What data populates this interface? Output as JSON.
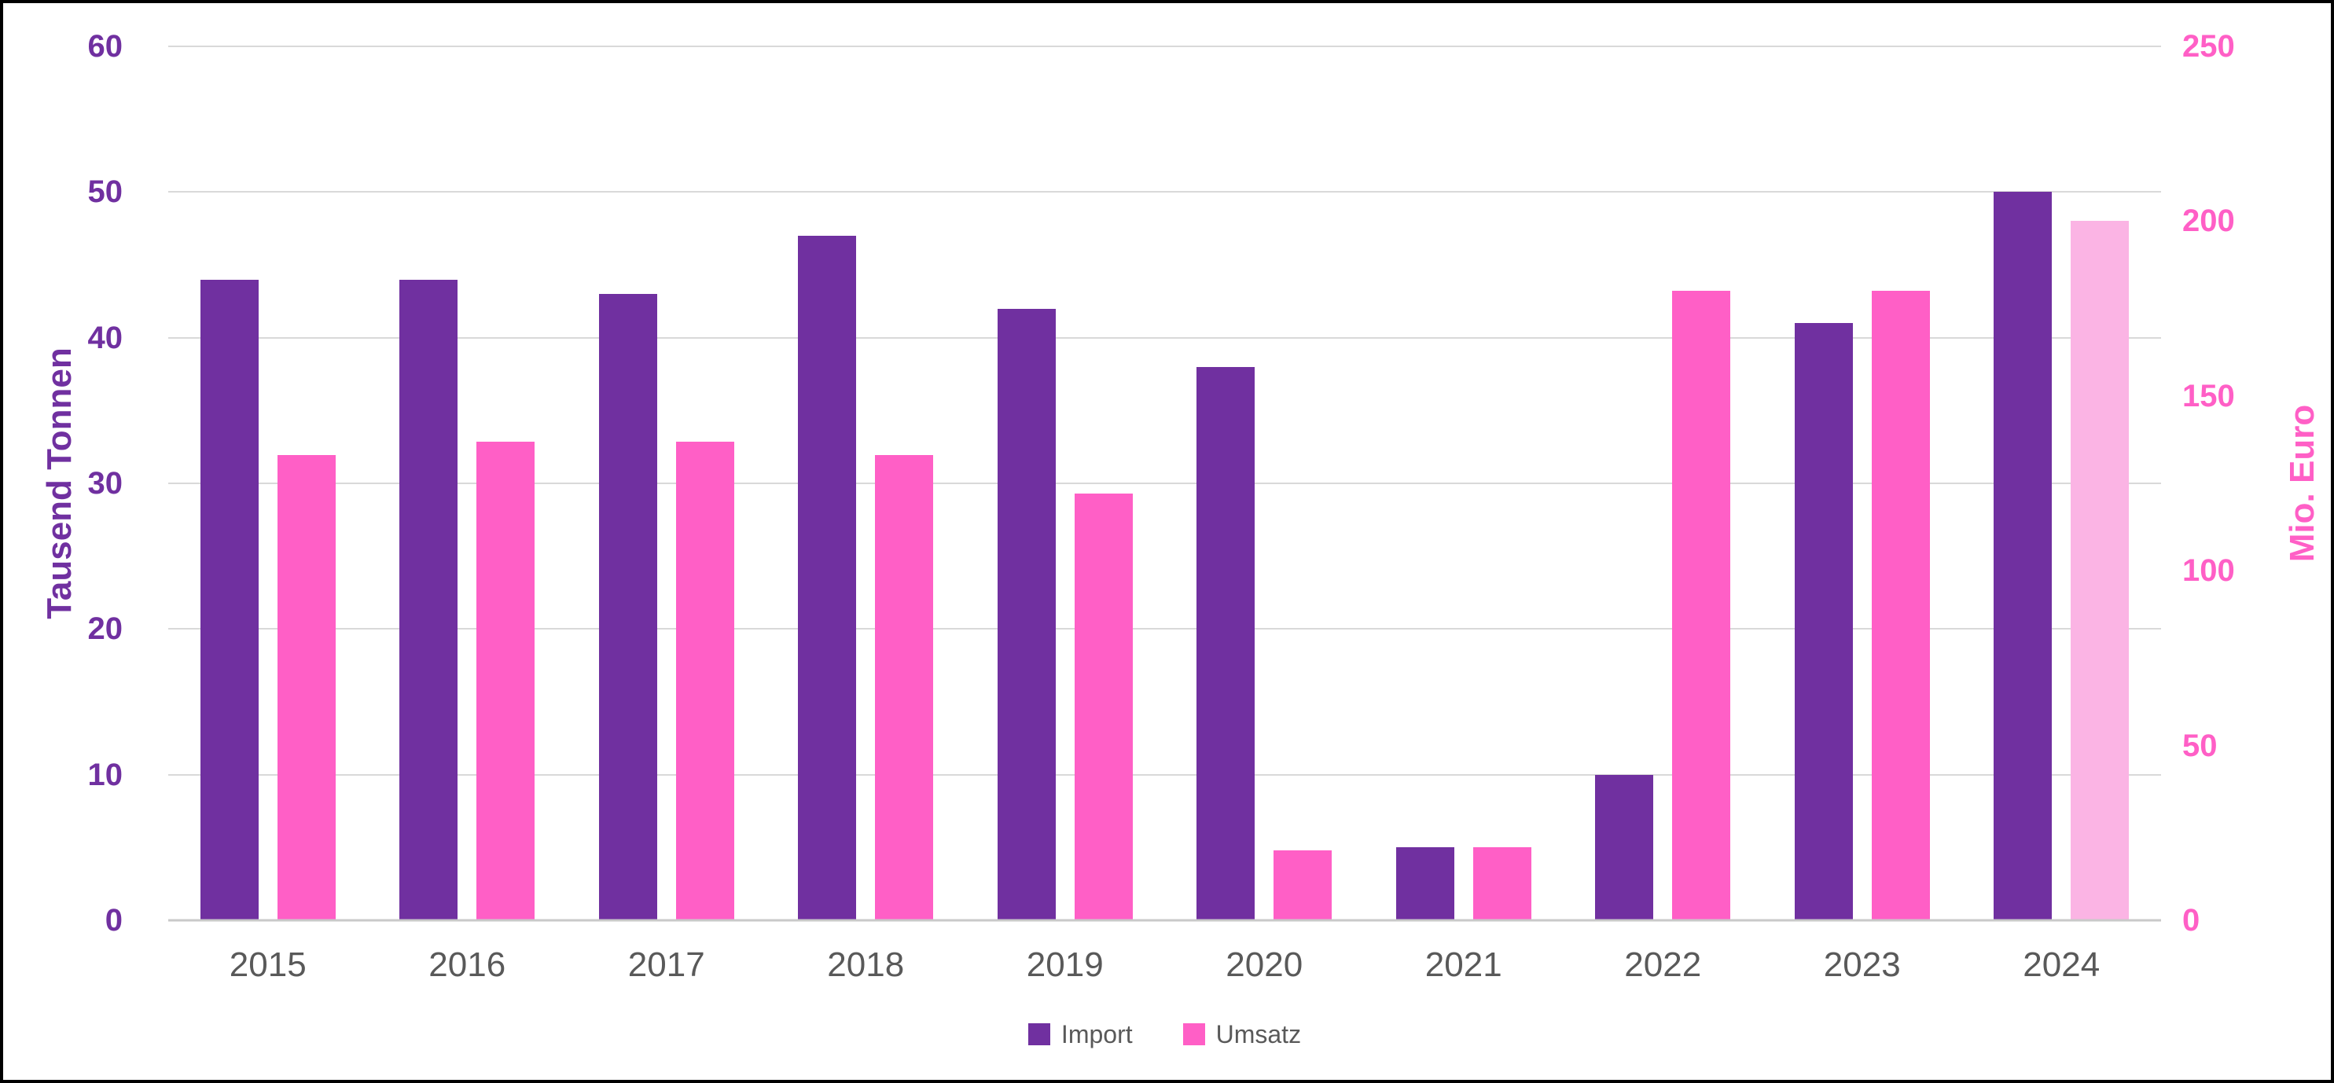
{
  "chart_data": {
    "type": "bar",
    "title": "",
    "categories": [
      "2015",
      "2016",
      "2017",
      "2018",
      "2019",
      "2020",
      "2021",
      "2022",
      "2023",
      "2024"
    ],
    "series": [
      {
        "name": "Import",
        "axis": "left",
        "unit": "Tausend Tonnen",
        "color": "#7030A0",
        "values": [
          44,
          44,
          43,
          47,
          42,
          38,
          5,
          10,
          41,
          50
        ]
      },
      {
        "name": "Umsatz",
        "axis": "right",
        "unit": "Mio. Euro",
        "color": "#FF5FC6",
        "values": [
          133,
          137,
          137,
          133,
          122,
          20,
          21,
          180,
          180,
          200
        ],
        "bar_colors": [
          null,
          null,
          null,
          null,
          null,
          null,
          null,
          null,
          null,
          "#FBB4E4"
        ]
      }
    ],
    "left_axis": {
      "label": "Tausend Tonnen",
      "min": 0,
      "max": 60,
      "ticks": [
        0,
        10,
        20,
        30,
        40,
        50,
        60
      ],
      "color": "#7030A0"
    },
    "right_axis": {
      "label": "Mio. Euro",
      "min": 0,
      "max": 250,
      "ticks": [
        0,
        50,
        100,
        150,
        200,
        250
      ],
      "color": "#FF5FC6"
    },
    "legend": [
      {
        "label": "Import",
        "color": "#7030A0"
      },
      {
        "label": "Umsatz",
        "color": "#FF5FC6"
      }
    ],
    "grid": true,
    "legend_position": "bottom-center",
    "gridline_color": "#D9D9D9",
    "axis_line_color": "#C9C9C9",
    "x_label_color": "#595959",
    "legend_text_color": "#595959",
    "background": "#FFFFFF",
    "border_color": "#000000"
  }
}
